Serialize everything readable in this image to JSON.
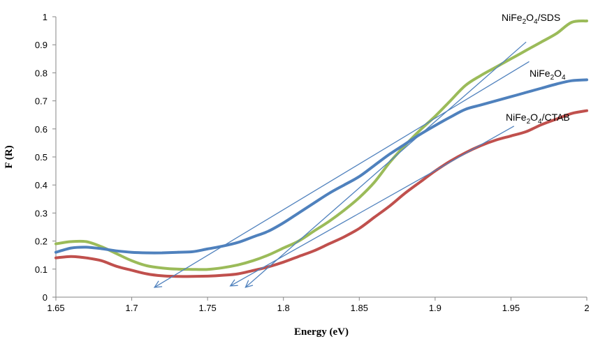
{
  "chart_data": {
    "type": "line",
    "xlabel": "Energy (eV)",
    "ylabel": "F (R)",
    "xlim": [
      1.65,
      2.0
    ],
    "ylim": [
      0,
      1.0
    ],
    "x_ticks": [
      "1.65",
      "1.7",
      "1.75",
      "1.8",
      "1.85",
      "1.9",
      "1.95",
      "2"
    ],
    "y_ticks": [
      "0",
      "0.1",
      "0.2",
      "0.3",
      "0.4",
      "0.5",
      "0.6",
      "0.7",
      "0.8",
      "0.9",
      "1"
    ],
    "grid": false,
    "legend": "none (series labelled directly on the curves)",
    "series": [
      {
        "name": "NiFe2O4/SDS",
        "label_parts": [
          [
            "NiFe",
            false
          ],
          [
            "2",
            true
          ],
          [
            "O",
            false
          ],
          [
            "4",
            true
          ],
          [
            "/SDS",
            false
          ]
        ],
        "color": "#9BBB59",
        "x": [
          1.65,
          1.66,
          1.67,
          1.68,
          1.69,
          1.7,
          1.71,
          1.72,
          1.73,
          1.74,
          1.75,
          1.76,
          1.77,
          1.78,
          1.79,
          1.8,
          1.81,
          1.82,
          1.83,
          1.84,
          1.85,
          1.86,
          1.87,
          1.88,
          1.89,
          1.9,
          1.91,
          1.92,
          1.93,
          1.94,
          1.95,
          1.96,
          1.97,
          1.98,
          1.99,
          2.0
        ],
        "values": [
          0.19,
          0.198,
          0.198,
          0.18,
          0.155,
          0.13,
          0.112,
          0.104,
          0.1,
          0.099,
          0.099,
          0.105,
          0.115,
          0.13,
          0.15,
          0.175,
          0.2,
          0.235,
          0.27,
          0.31,
          0.355,
          0.41,
          0.48,
          0.54,
          0.595,
          0.645,
          0.7,
          0.755,
          0.79,
          0.82,
          0.85,
          0.88,
          0.91,
          0.94,
          0.98,
          0.985
        ]
      },
      {
        "name": "NiFe2O4",
        "label_parts": [
          [
            "NiFe",
            false
          ],
          [
            "2",
            true
          ],
          [
            "O",
            false
          ],
          [
            "4",
            true
          ]
        ],
        "color": "#4F81BD",
        "x": [
          1.65,
          1.66,
          1.67,
          1.68,
          1.69,
          1.7,
          1.71,
          1.72,
          1.73,
          1.74,
          1.75,
          1.76,
          1.77,
          1.78,
          1.79,
          1.8,
          1.81,
          1.82,
          1.83,
          1.84,
          1.85,
          1.86,
          1.87,
          1.88,
          1.89,
          1.9,
          1.91,
          1.92,
          1.93,
          1.94,
          1.95,
          1.96,
          1.97,
          1.98,
          1.99,
          2.0
        ],
        "values": [
          0.16,
          0.175,
          0.178,
          0.173,
          0.165,
          0.16,
          0.158,
          0.158,
          0.16,
          0.162,
          0.172,
          0.182,
          0.195,
          0.215,
          0.235,
          0.265,
          0.3,
          0.335,
          0.37,
          0.4,
          0.43,
          0.47,
          0.51,
          0.545,
          0.58,
          0.612,
          0.642,
          0.67,
          0.685,
          0.7,
          0.715,
          0.73,
          0.745,
          0.76,
          0.772,
          0.775
        ]
      },
      {
        "name": "NiFe2O4/CTAB",
        "label_parts": [
          [
            "NiFe",
            false
          ],
          [
            "2",
            true
          ],
          [
            "O",
            false
          ],
          [
            "4",
            true
          ],
          [
            "/CTAB",
            false
          ]
        ],
        "color": "#C0504D",
        "x": [
          1.65,
          1.66,
          1.67,
          1.68,
          1.69,
          1.7,
          1.71,
          1.72,
          1.73,
          1.74,
          1.75,
          1.76,
          1.77,
          1.78,
          1.79,
          1.8,
          1.81,
          1.82,
          1.83,
          1.84,
          1.85,
          1.86,
          1.87,
          1.88,
          1.89,
          1.9,
          1.91,
          1.92,
          1.93,
          1.94,
          1.95,
          1.96,
          1.97,
          1.98,
          1.99,
          2.0
        ],
        "values": [
          0.14,
          0.145,
          0.14,
          0.13,
          0.11,
          0.096,
          0.083,
          0.076,
          0.074,
          0.074,
          0.075,
          0.078,
          0.083,
          0.095,
          0.108,
          0.125,
          0.145,
          0.165,
          0.19,
          0.215,
          0.245,
          0.285,
          0.325,
          0.37,
          0.41,
          0.45,
          0.485,
          0.515,
          0.54,
          0.56,
          0.575,
          0.59,
          0.615,
          0.635,
          0.655,
          0.665
        ]
      }
    ],
    "tangent_lines": [
      {
        "series": "NiFe2O4/SDS",
        "color": "#4F81BD",
        "from": [
          1.96,
          0.91
        ],
        "to": [
          1.775,
          0.035
        ]
      },
      {
        "series": "NiFe2O4",
        "color": "#4F81BD",
        "from": [
          1.962,
          0.84
        ],
        "to": [
          1.715,
          0.035
        ]
      },
      {
        "series": "NiFe2O4/CTAB",
        "color": "#4F81BD",
        "from": [
          1.952,
          0.61
        ],
        "to": [
          1.765,
          0.04
        ]
      }
    ]
  }
}
